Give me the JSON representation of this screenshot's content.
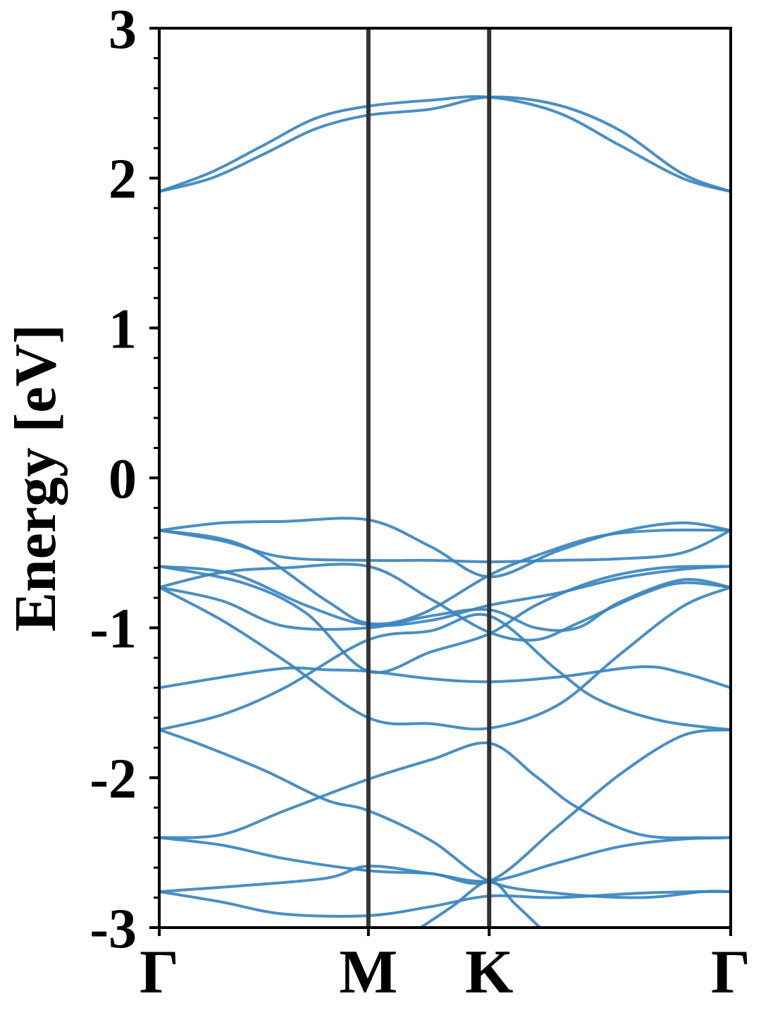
{
  "chart_data": {
    "type": "line",
    "xlabel": "",
    "ylabel": "Energy [eV]",
    "ylim": [
      -3,
      3
    ],
    "yticks": [
      3,
      2,
      1,
      0,
      -1,
      -2,
      -3
    ],
    "ytick_labels": [
      "3",
      "2",
      "1",
      "0",
      "-1",
      "-2",
      "-3"
    ],
    "kpoints": [
      {
        "label": "Γ",
        "x": 0
      },
      {
        "label": "M",
        "x": 1
      },
      {
        "label": "K",
        "x": 1.5774
      },
      {
        "label": "Γ",
        "x": 2.7321
      }
    ],
    "grid": false,
    "colors": {
      "band": "#3a85be",
      "kpath_line": "#333333",
      "frame": "#000000"
    },
    "series": [
      {
        "x": [
          0,
          0.25,
          0.5,
          0.75,
          1,
          1.3,
          1.5774,
          1.9,
          2.2,
          2.5,
          2.7321
        ],
        "y": [
          1.91,
          2.04,
          2.22,
          2.4,
          2.48,
          2.52,
          2.54,
          2.44,
          2.22,
          2.0,
          1.91
        ]
      },
      {
        "x": [
          0,
          0.25,
          0.5,
          0.75,
          1,
          1.3,
          1.5774,
          1.9,
          2.2,
          2.5,
          2.7321
        ],
        "y": [
          1.91,
          2.0,
          2.16,
          2.33,
          2.42,
          2.46,
          2.54,
          2.49,
          2.32,
          2.03,
          1.91
        ]
      },
      {
        "x": [
          0,
          0.3,
          0.6,
          1,
          1.3,
          1.5774,
          1.9,
          2.2,
          2.5,
          2.7321
        ],
        "y": [
          -0.35,
          -0.3,
          -0.29,
          -0.28,
          -0.46,
          -0.66,
          -0.49,
          -0.36,
          -0.3,
          -0.35
        ]
      },
      {
        "x": [
          0,
          0.3,
          0.6,
          1,
          1.3,
          1.5774,
          1.9,
          2.2,
          2.5,
          2.7321
        ],
        "y": [
          -0.35,
          -0.42,
          -0.53,
          -0.55,
          -0.55,
          -0.56,
          -0.55,
          -0.54,
          -0.5,
          -0.35
        ]
      },
      {
        "x": [
          0,
          0.4,
          0.8,
          1,
          1.25,
          1.5774,
          1.8,
          2.1,
          2.4,
          2.7321
        ],
        "y": [
          -0.35,
          -0.45,
          -0.82,
          -0.97,
          -0.91,
          -0.65,
          -0.52,
          -0.39,
          -0.35,
          -0.35
        ]
      },
      {
        "x": [
          0,
          0.35,
          0.7,
          1,
          1.3,
          1.5774,
          1.9,
          2.2,
          2.5,
          2.7321
        ],
        "y": [
          -0.59,
          -0.64,
          -0.85,
          -0.98,
          -0.95,
          -0.85,
          -0.77,
          -0.67,
          -0.61,
          -0.59
        ]
      },
      {
        "x": [
          0,
          0.4,
          0.7,
          1,
          1.3,
          1.5774,
          1.8,
          2.1,
          2.4,
          2.7321
        ],
        "y": [
          -0.59,
          -0.7,
          -0.9,
          -1.29,
          -1.16,
          -1.04,
          -0.85,
          -0.68,
          -0.6,
          -0.59
        ]
      },
      {
        "x": [
          0,
          0.3,
          0.6,
          1,
          1.3,
          1.5774,
          1.8,
          2.0,
          2.3,
          2.5,
          2.7321
        ],
        "y": [
          -0.73,
          -0.63,
          -0.6,
          -0.59,
          -0.81,
          -1.03,
          -1.08,
          -0.97,
          -0.78,
          -0.7,
          -0.73
        ]
      },
      {
        "x": [
          0,
          0.3,
          0.6,
          1,
          1.3,
          1.5774,
          1.8,
          2.0,
          2.2,
          2.5,
          2.7321
        ],
        "y": [
          -0.73,
          -0.82,
          -0.99,
          -1.0,
          -0.92,
          -0.88,
          -1.0,
          -1.0,
          -0.83,
          -0.68,
          -0.73
        ]
      },
      {
        "x": [
          0,
          0.3,
          0.6,
          1,
          1.3,
          1.5774,
          1.9,
          2.2,
          2.5,
          2.7321
        ],
        "y": [
          -0.73,
          -0.95,
          -1.22,
          -1.6,
          -1.64,
          -1.67,
          -1.52,
          -1.18,
          -0.86,
          -0.73
        ]
      },
      {
        "x": [
          0,
          0.3,
          0.6,
          0.8,
          1,
          1.3,
          1.5774,
          1.9,
          2.3,
          2.5,
          2.7321
        ],
        "y": [
          -1.4,
          -1.33,
          -1.27,
          -1.28,
          -1.29,
          -1.34,
          -1.36,
          -1.33,
          -1.26,
          -1.3,
          -1.4
        ]
      },
      {
        "x": [
          0,
          0.3,
          0.6,
          1,
          1.3,
          1.5774,
          1.9,
          2.1,
          2.4,
          2.7321
        ],
        "y": [
          -1.68,
          -1.58,
          -1.4,
          -1.08,
          -1.02,
          -0.92,
          -1.28,
          -1.48,
          -1.62,
          -1.68
        ]
      },
      {
        "x": [
          0,
          0.2,
          0.5,
          0.8,
          1,
          1.3,
          1.5774,
          1.9,
          2.3,
          2.6,
          2.7321
        ],
        "y": [
          -1.68,
          -1.78,
          -1.95,
          -2.15,
          -2.22,
          -2.42,
          -2.69,
          -2.77,
          -2.8,
          -2.76,
          -2.76
        ]
      },
      {
        "x": [
          0,
          0.3,
          0.6,
          1,
          1.3,
          1.5774,
          1.8,
          2.0,
          2.3,
          2.6,
          2.7321
        ],
        "y": [
          -2.4,
          -2.38,
          -2.22,
          -2.01,
          -1.88,
          -1.77,
          -1.99,
          -2.2,
          -2.38,
          -2.4,
          -2.4
        ]
      },
      {
        "x": [
          0,
          0.3,
          0.6,
          1,
          1.3,
          1.5774,
          1.9,
          2.2,
          2.5,
          2.7321
        ],
        "y": [
          -2.4,
          -2.45,
          -2.54,
          -2.62,
          -2.64,
          -2.69,
          -2.33,
          -1.98,
          -1.72,
          -1.68
        ]
      },
      {
        "x": [
          0,
          0.4,
          0.8,
          1,
          1.3,
          1.5774,
          1.9,
          2.2,
          2.5,
          2.7321
        ],
        "y": [
          -2.76,
          -2.72,
          -2.67,
          -2.59,
          -2.64,
          -2.69,
          -2.57,
          -2.46,
          -2.41,
          -2.4
        ]
      },
      {
        "x": [
          0,
          0.3,
          0.6,
          1,
          1.3,
          1.5774,
          1.9,
          2.3,
          2.6,
          2.7321
        ],
        "y": [
          -2.76,
          -2.83,
          -2.91,
          -2.92,
          -2.86,
          -2.79,
          -2.8,
          -2.77,
          -2.76,
          -2.76
        ]
      },
      {
        "x": [
          1.25,
          1.4,
          1.5774,
          1.7,
          1.82
        ],
        "y": [
          -3.0,
          -2.86,
          -2.69,
          -2.84,
          -3.0
        ]
      }
    ]
  }
}
